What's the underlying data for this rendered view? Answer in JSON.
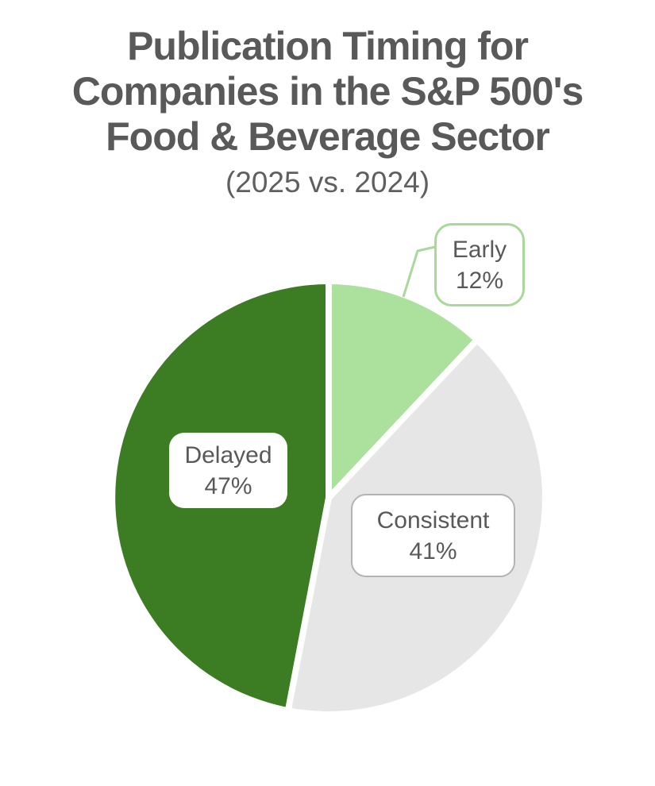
{
  "title": {
    "lines": [
      "Publication Timing for",
      "Companies in the S&P 500's",
      "Food & Beverage Sector"
    ],
    "subtitle": "(2025 vs. 2024)"
  },
  "colors": {
    "title_text": "#595959",
    "label_text": "#595959",
    "slice_separator": "#ffffff",
    "early_callout_border": "#a9d89b",
    "consistent_callout_border": "#b3b3b3",
    "leader_line": "#a9d89b"
  },
  "chart_data": {
    "type": "pie",
    "title": "Publication Timing for Companies in the S&P 500's Food & Beverage Sector",
    "subtitle": "(2025 vs. 2024)",
    "start_angle_deg": 0,
    "direction": "clockwise",
    "legend": "none",
    "slices": [
      {
        "label": "Early",
        "value": 12,
        "display": "12%",
        "color": "#ace09d"
      },
      {
        "label": "Consistent",
        "value": 41,
        "display": "41%",
        "color": "#e6e6e6"
      },
      {
        "label": "Delayed",
        "value": 47,
        "display": "47%",
        "color": "#3c7d23"
      }
    ]
  }
}
